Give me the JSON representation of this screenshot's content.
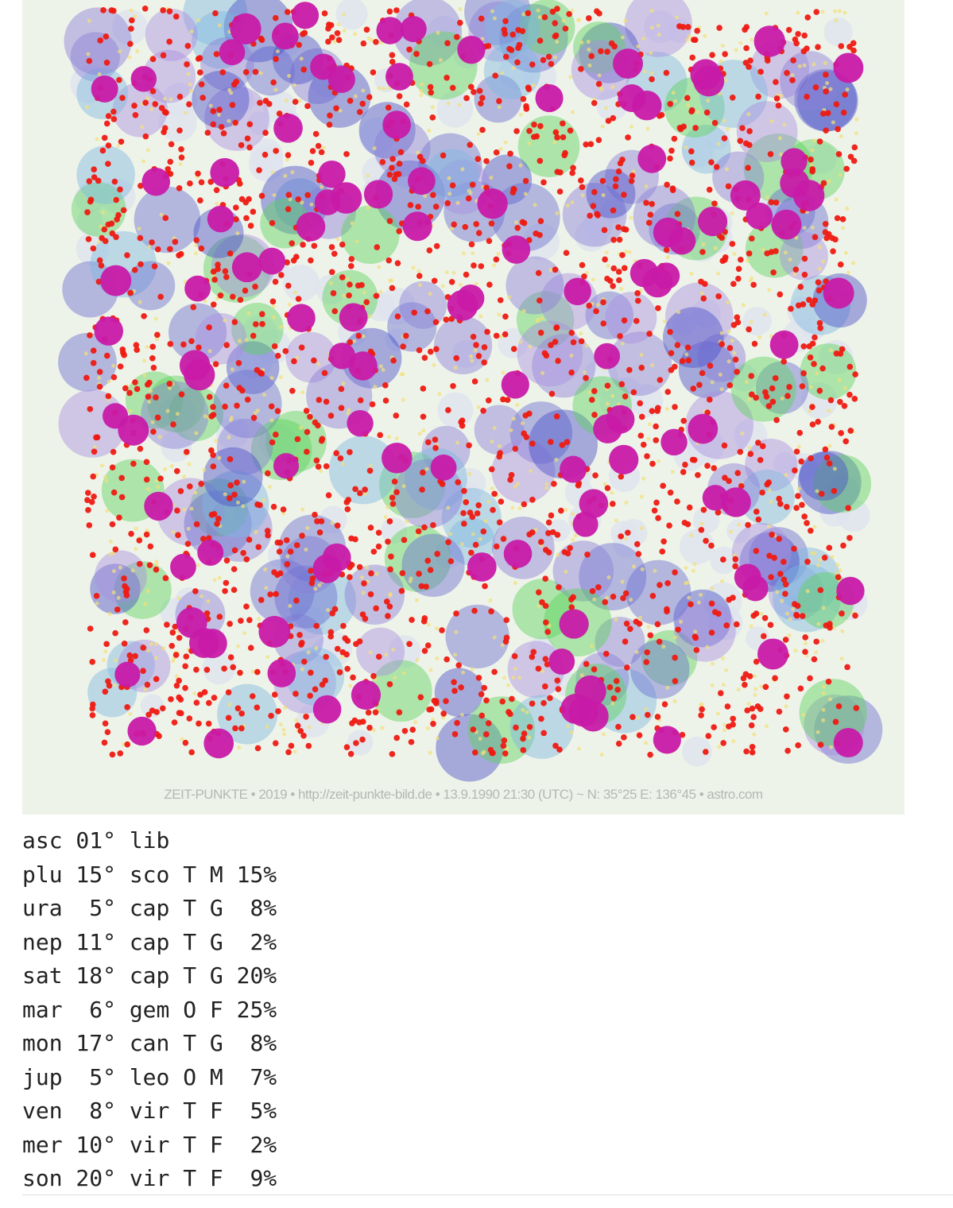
{
  "image": {
    "caption": "ZEIT-PUNKTE • 2019 • http://zeit-punkte-bild.de • 13.9.1990 21:30 (UTC) ~ N: 35°25 E: 136°45 • astro.com"
  },
  "table": {
    "rows": [
      [
        "asc",
        "01°",
        "lib"
      ],
      [
        "plu",
        "15°",
        "sco",
        "T",
        "M",
        "15%"
      ],
      [
        "ura",
        "5°",
        "cap",
        "T",
        "G",
        "8%"
      ],
      [
        "nep",
        "11°",
        "cap",
        "T",
        "G",
        "2%"
      ],
      [
        "sat",
        "18°",
        "cap",
        "T",
        "G",
        "20%"
      ],
      [
        "mar",
        "6°",
        "gem",
        "O",
        "F",
        "25%"
      ],
      [
        "mon",
        "17°",
        "can",
        "T",
        "G",
        "8%"
      ],
      [
        "jup",
        "5°",
        "leo",
        "O",
        "M",
        "7%"
      ],
      [
        "ven",
        "8°",
        "vir",
        "T",
        "F",
        "5%"
      ],
      [
        "mer",
        "10°",
        "vir",
        "T",
        "F",
        "2%"
      ],
      [
        "son",
        "20°",
        "vir",
        "T",
        "F",
        "9%"
      ]
    ]
  }
}
